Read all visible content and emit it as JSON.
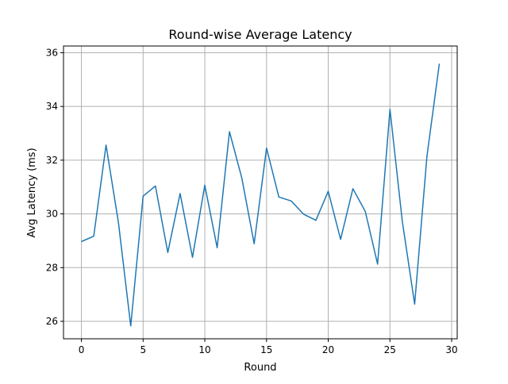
{
  "chart_data": {
    "type": "line",
    "title": "Round-wise Average Latency",
    "xlabel": "Round",
    "ylabel": "Avg Latency (ms)",
    "xlim": [
      -1.45,
      30.45
    ],
    "ylim": [
      25.35,
      36.25
    ],
    "xticks": [
      0,
      5,
      10,
      15,
      20,
      25,
      30
    ],
    "yticks": [
      26,
      28,
      30,
      32,
      34,
      36
    ],
    "grid": true,
    "series": [
      {
        "color": "#1f77b4",
        "x": [
          0,
          1,
          2,
          3,
          4,
          5,
          6,
          7,
          8,
          9,
          10,
          11,
          12,
          13,
          14,
          15,
          16,
          17,
          18,
          19,
          20,
          21,
          22,
          23,
          24,
          25,
          26,
          27,
          28,
          29
        ],
        "y": [
          28.97,
          29.17,
          32.56,
          29.68,
          25.83,
          30.66,
          31.04,
          28.56,
          30.76,
          28.38,
          31.07,
          28.74,
          33.06,
          31.33,
          28.89,
          32.45,
          30.63,
          30.48,
          29.99,
          29.76,
          30.84,
          29.05,
          30.94,
          30.09,
          28.13,
          33.89,
          29.73,
          26.64,
          32.15,
          35.59
        ]
      }
    ]
  }
}
